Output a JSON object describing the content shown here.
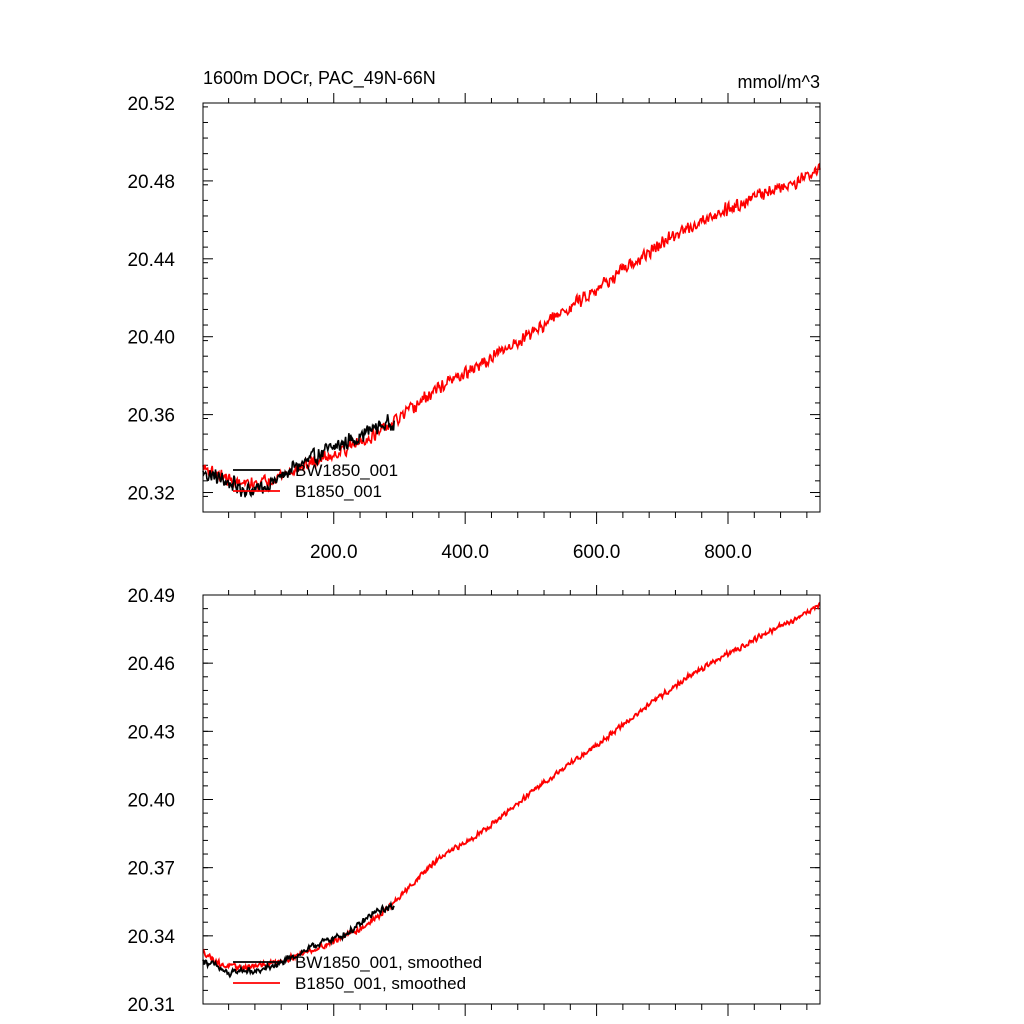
{
  "chart_data": [
    {
      "type": "line",
      "title": "1600m DOCr, PAC_49N-66N",
      "units_label": "mmol/m^3",
      "xlim": [
        1,
        940
      ],
      "ylim": [
        20.31,
        20.52
      ],
      "x_ticks": [
        200,
        400,
        600,
        800
      ],
      "x_tick_labels": [
        "200.0",
        "400.0",
        "600.0",
        "800.0"
      ],
      "y_ticks": [
        20.32,
        20.36,
        20.4,
        20.44,
        20.48,
        20.52
      ],
      "y_tick_labels": [
        "20.32",
        "20.36",
        "20.40",
        "20.44",
        "20.48",
        "20.52"
      ],
      "legend_position": "bottom-left",
      "series": [
        {
          "name": "BW1850_001",
          "color": "#000000",
          "points": [
            [
              1,
              20.33
            ],
            [
              20,
              20.328
            ],
            [
              40,
              20.325
            ],
            [
              60,
              20.322
            ],
            [
              80,
              20.321
            ],
            [
              100,
              20.324
            ],
            [
              120,
              20.328
            ],
            [
              140,
              20.333
            ],
            [
              160,
              20.336
            ],
            [
              180,
              20.34
            ],
            [
              200,
              20.343
            ],
            [
              220,
              20.346
            ],
            [
              240,
              20.349
            ],
            [
              260,
              20.353
            ],
            [
              280,
              20.355
            ],
            [
              292,
              20.357
            ]
          ],
          "noise": 0.005
        },
        {
          "name": "B1850_001",
          "color": "#ff0000",
          "points": [
            [
              1,
              20.333
            ],
            [
              30,
              20.328
            ],
            [
              60,
              20.324
            ],
            [
              90,
              20.325
            ],
            [
              120,
              20.329
            ],
            [
              150,
              20.333
            ],
            [
              180,
              20.337
            ],
            [
              210,
              20.341
            ],
            [
              240,
              20.346
            ],
            [
              270,
              20.351
            ],
            [
              300,
              20.358
            ],
            [
              330,
              20.366
            ],
            [
              360,
              20.374
            ],
            [
              400,
              20.381
            ],
            [
              450,
              20.391
            ],
            [
              500,
              20.402
            ],
            [
              550,
              20.413
            ],
            [
              600,
              20.425
            ],
            [
              650,
              20.436
            ],
            [
              700,
              20.448
            ],
            [
              750,
              20.458
            ],
            [
              800,
              20.466
            ],
            [
              850,
              20.473
            ],
            [
              900,
              20.479
            ],
            [
              940,
              20.486
            ]
          ],
          "noise": 0.004
        }
      ]
    },
    {
      "type": "line",
      "xlim": [
        1,
        940
      ],
      "ylim": [
        20.31,
        20.49
      ],
      "y_ticks": [
        20.31,
        20.34,
        20.37,
        20.4,
        20.43,
        20.46,
        20.49
      ],
      "y_tick_labels": [
        "20.31",
        "20.34",
        "20.37",
        "20.40",
        "20.43",
        "20.46",
        "20.49"
      ],
      "legend_position": "bottom-left",
      "series": [
        {
          "name": "BW1850_001, smoothed",
          "color": "#000000",
          "points": [
            [
              1,
              20.329
            ],
            [
              20,
              20.327
            ],
            [
              40,
              20.323
            ],
            [
              60,
              20.325
            ],
            [
              80,
              20.324
            ],
            [
              100,
              20.326
            ],
            [
              120,
              20.328
            ],
            [
              140,
              20.331
            ],
            [
              160,
              20.334
            ],
            [
              180,
              20.337
            ],
            [
              200,
              20.339
            ],
            [
              220,
              20.341
            ],
            [
              240,
              20.345
            ],
            [
              260,
              20.35
            ],
            [
              280,
              20.352
            ],
            [
              292,
              20.353
            ]
          ],
          "noise": 0.0018
        },
        {
          "name": "B1850_001, smoothed",
          "color": "#ff0000",
          "points": [
            [
              1,
              20.333
            ],
            [
              30,
              20.327
            ],
            [
              60,
              20.326
            ],
            [
              90,
              20.327
            ],
            [
              120,
              20.329
            ],
            [
              150,
              20.332
            ],
            [
              180,
              20.335
            ],
            [
              210,
              20.339
            ],
            [
              240,
              20.343
            ],
            [
              270,
              20.349
            ],
            [
              300,
              20.357
            ],
            [
              330,
              20.366
            ],
            [
              360,
              20.374
            ],
            [
              400,
              20.381
            ],
            [
              450,
              20.391
            ],
            [
              500,
              20.403
            ],
            [
              550,
              20.414
            ],
            [
              600,
              20.424
            ],
            [
              650,
              20.435
            ],
            [
              700,
              20.446
            ],
            [
              750,
              20.456
            ],
            [
              800,
              20.464
            ],
            [
              850,
              20.472
            ],
            [
              900,
              20.479
            ],
            [
              940,
              20.486
            ]
          ],
          "noise": 0.0015
        }
      ]
    }
  ]
}
